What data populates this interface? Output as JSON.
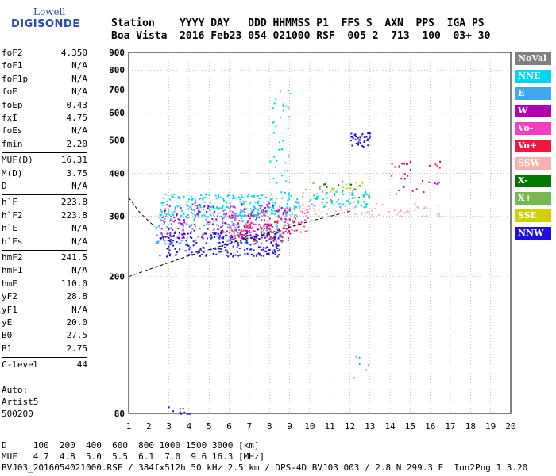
{
  "logo": {
    "line1": "Lowell",
    "line2": "DIGISONDE"
  },
  "header": {
    "line1": "Station    YYYY DAY   DDD HHMMSS P1  FFS S  AXN  PPS  IGA PS",
    "line2": "Boa Vista  2016 Feb23 054 021000 RSF  005 2  713  100  03+ 30"
  },
  "params": [
    {
      "label": "foF2",
      "value": "4.350"
    },
    {
      "label": "foF1",
      "value": "N/A"
    },
    {
      "label": "foF1p",
      "value": "N/A"
    },
    {
      "label": "foE",
      "value": "N/A"
    },
    {
      "label": "foEp",
      "value": "0.43"
    },
    {
      "label": "fxI",
      "value": "4.75"
    },
    {
      "label": "foEs",
      "value": "N/A"
    },
    {
      "label": "fmin",
      "value": "2.20"
    },
    {
      "label": "MUF(D)",
      "value": "16.31"
    },
    {
      "label": "M(D)",
      "value": "3.75"
    },
    {
      "label": "D",
      "value": "N/A"
    },
    {
      "label": "h`F",
      "value": "223.8"
    },
    {
      "label": "h`F2",
      "value": "223.8"
    },
    {
      "label": "h`E",
      "value": "N/A"
    },
    {
      "label": "h`Es",
      "value": "N/A"
    },
    {
      "label": "hmF2",
      "value": "241.5"
    },
    {
      "label": "hmF1",
      "value": "N/A"
    },
    {
      "label": "hmE",
      "value": "110.0"
    },
    {
      "label": "yF2",
      "value": "28.8"
    },
    {
      "label": "yF1",
      "value": "N/A"
    },
    {
      "label": "yE",
      "value": "20.0"
    },
    {
      "label": "B0",
      "value": "27.5"
    },
    {
      "label": "B1",
      "value": "2.75"
    },
    {
      "label": "C-level",
      "value": "44"
    }
  ],
  "auto": {
    "line1": "Auto:",
    "line2": "Artist5",
    "line3": "500200"
  },
  "footer": {
    "line1": "D     100  200  400  600  800 1000 1500 3000 [km]",
    "line2": "MUF   4.7  4.8  5.0  5.5  6.1  7.0  9.6 16.3 [MHz]",
    "line3": "BVJ03_2016054021000.RSF / 384fx512h 50 kHz 2.5 km / DPS-4D BVJ03 003 / 2.8 N 299.3 E  Ion2Png 1.3.20"
  },
  "legend": [
    {
      "label": "NoVal",
      "color": "#808080"
    },
    {
      "label": "NNE",
      "color": "#00d8f0"
    },
    {
      "label": "E",
      "color": "#40a8f0"
    },
    {
      "label": "W",
      "color": "#b000b0"
    },
    {
      "label": "Vo-",
      "color": "#f040c0"
    },
    {
      "label": "Vo+",
      "color": "#f01840"
    },
    {
      "label": "SSW",
      "color": "#f8b0b0"
    },
    {
      "label": "X-",
      "color": "#007800"
    },
    {
      "label": "X+",
      "color": "#78b850"
    },
    {
      "label": "SSE",
      "color": "#d0d000"
    },
    {
      "label": "NNW",
      "color": "#2010e0"
    }
  ],
  "chart_data": {
    "type": "scatter",
    "title": "",
    "xlabel": "",
    "ylabel": "",
    "xlim": [
      1,
      20
    ],
    "ylim": [
      80,
      900
    ],
    "x_ticks": [
      1,
      2,
      3,
      4,
      5,
      6,
      7,
      8,
      9,
      10,
      11,
      12,
      13,
      14,
      15,
      16,
      17,
      18,
      19,
      20
    ],
    "y_ticks": [
      80,
      200,
      300,
      400,
      500,
      600,
      700,
      800,
      900
    ],
    "y_scale": "log",
    "grid": "dotted",
    "series": [
      {
        "name": "NNE",
        "color": "#00d8f0",
        "clusters": [
          {
            "x0": 2.5,
            "x1": 9.5,
            "y0": 300,
            "y1": 350,
            "n": 260
          },
          {
            "x0": 8.0,
            "x1": 9.0,
            "y0": 350,
            "y1": 700,
            "n": 40
          },
          {
            "x0": 10.0,
            "x1": 13.0,
            "y0": 320,
            "y1": 360,
            "n": 60
          }
        ]
      },
      {
        "name": "E",
        "color": "#40a8f0",
        "clusters": [
          {
            "x0": 2.3,
            "x1": 9.0,
            "y0": 250,
            "y1": 310,
            "n": 180
          },
          {
            "x0": 12.0,
            "x1": 13.0,
            "y0": 100,
            "y1": 125,
            "n": 6
          }
        ]
      },
      {
        "name": "W",
        "color": "#b000b0",
        "clusters": [
          {
            "x0": 2.5,
            "x1": 9.0,
            "y0": 260,
            "y1": 330,
            "n": 200
          },
          {
            "x0": 14.0,
            "x1": 16.5,
            "y0": 350,
            "y1": 450,
            "n": 20
          }
        ]
      },
      {
        "name": "Vo-",
        "color": "#f040c0",
        "clusters": [
          {
            "x0": 5.5,
            "x1": 10.0,
            "y0": 270,
            "y1": 320,
            "n": 90
          }
        ]
      },
      {
        "name": "Vo+",
        "color": "#f01840",
        "clusters": [
          {
            "x0": 6.0,
            "x1": 9.5,
            "y0": 255,
            "y1": 300,
            "n": 70
          },
          {
            "x0": 14.0,
            "x1": 16.5,
            "y0": 360,
            "y1": 440,
            "n": 12
          }
        ]
      },
      {
        "name": "SSW",
        "color": "#f8b0b0",
        "clusters": [
          {
            "x0": 9.0,
            "x1": 16.5,
            "y0": 300,
            "y1": 330,
            "n": 80
          }
        ]
      },
      {
        "name": "X-",
        "color": "#007800",
        "clusters": [
          {
            "x0": 10.5,
            "x1": 12.5,
            "y0": 340,
            "y1": 380,
            "n": 12
          }
        ]
      },
      {
        "name": "X+",
        "color": "#78b850",
        "clusters": [
          {
            "x0": 9.5,
            "x1": 12.0,
            "y0": 330,
            "y1": 380,
            "n": 15
          }
        ]
      },
      {
        "name": "SSE",
        "color": "#d0d000",
        "clusters": [
          {
            "x0": 11.0,
            "x1": 13.0,
            "y0": 340,
            "y1": 380,
            "n": 15
          }
        ]
      },
      {
        "name": "NNW",
        "color": "#2010e0",
        "clusters": [
          {
            "x0": 2.5,
            "x1": 8.5,
            "y0": 230,
            "y1": 270,
            "n": 220
          },
          {
            "x0": 12.0,
            "x1": 13.0,
            "y0": 480,
            "y1": 530,
            "n": 40
          },
          {
            "x0": 2.5,
            "x1": 4.0,
            "y0": 80,
            "y1": 84,
            "n": 10
          }
        ]
      }
    ],
    "trace_curves": [
      {
        "name": "O-trace lower",
        "style": "dashed",
        "points": [
          [
            1,
            200
          ],
          [
            2,
            210
          ],
          [
            4,
            230
          ],
          [
            6,
            250
          ],
          [
            8,
            268
          ],
          [
            10,
            290
          ],
          [
            12,
            310
          ]
        ]
      },
      {
        "name": "O-trace upper",
        "style": "dashed",
        "points": [
          [
            1,
            340
          ],
          [
            1.5,
            310
          ],
          [
            2,
            290
          ],
          [
            2.3,
            280
          ]
        ]
      }
    ]
  }
}
